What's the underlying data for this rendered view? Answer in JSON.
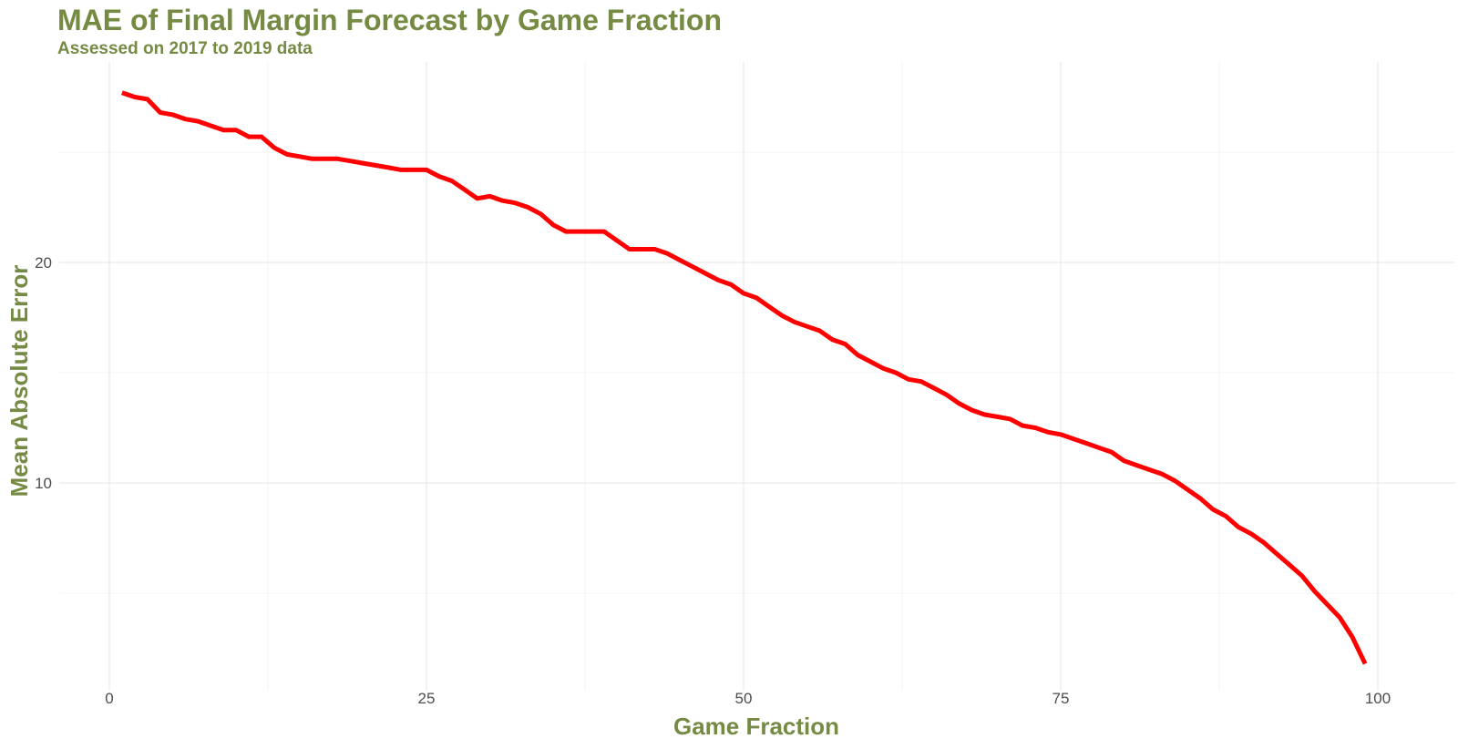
{
  "colors": {
    "title": "#758a43",
    "line": "#ff0000",
    "grid": "#e6e6e6",
    "tick_text": "#4d4d4d",
    "background": "#ffffff"
  },
  "chart_data": {
    "type": "line",
    "title": "MAE of Final Margin Forecast by Game Fraction",
    "subtitle": "Assessed on 2017 to 2019 data",
    "xlabel": "Game Fraction",
    "ylabel": "Mean Absolute Error",
    "xlim": [
      0,
      100
    ],
    "ylim": [
      1,
      28.8
    ],
    "x_ticks": [
      0,
      25,
      50,
      75,
      100
    ],
    "x_tick_labels": [
      "0",
      "25",
      "50",
      "75",
      "100"
    ],
    "y_ticks": [
      10,
      20
    ],
    "y_tick_labels": [
      "10",
      "20"
    ],
    "grid": true,
    "legend": "none",
    "series": [
      {
        "x": [
          1,
          2,
          3,
          4,
          5,
          6,
          7,
          8,
          9,
          10,
          11,
          12,
          13,
          14,
          15,
          16,
          17,
          18,
          19,
          20,
          21,
          22,
          23,
          24,
          25,
          26,
          27,
          28,
          29,
          30,
          31,
          32,
          33,
          34,
          35,
          36,
          37,
          38,
          39,
          40,
          41,
          42,
          43,
          44,
          45,
          46,
          47,
          48,
          49,
          50,
          51,
          52,
          53,
          54,
          55,
          56,
          57,
          58,
          59,
          60,
          61,
          62,
          63,
          64,
          65,
          66,
          67,
          68,
          69,
          70,
          71,
          72,
          73,
          74,
          75,
          76,
          77,
          78,
          79,
          80,
          81,
          82,
          83,
          84,
          85,
          86,
          87,
          88,
          89,
          90,
          91,
          92,
          93,
          94,
          95,
          96,
          97,
          98,
          99
        ],
        "values": [
          27.7,
          27.5,
          27.4,
          26.8,
          26.7,
          26.5,
          26.4,
          26.2,
          26.0,
          26.0,
          25.7,
          25.7,
          25.2,
          24.9,
          24.8,
          24.7,
          24.7,
          24.7,
          24.6,
          24.5,
          24.4,
          24.3,
          24.2,
          24.2,
          24.2,
          23.9,
          23.7,
          23.3,
          22.9,
          23.0,
          22.8,
          22.7,
          22.5,
          22.2,
          21.7,
          21.4,
          21.4,
          21.4,
          21.4,
          21.0,
          20.6,
          20.6,
          20.6,
          20.4,
          20.1,
          19.8,
          19.5,
          19.2,
          19.0,
          18.6,
          18.4,
          18.0,
          17.6,
          17.3,
          17.1,
          16.9,
          16.5,
          16.3,
          15.8,
          15.5,
          15.2,
          15.0,
          14.7,
          14.6,
          14.3,
          14.0,
          13.6,
          13.3,
          13.1,
          13.0,
          12.9,
          12.6,
          12.5,
          12.3,
          12.2,
          12.0,
          11.8,
          11.6,
          11.4,
          11.0,
          10.8,
          10.6,
          10.4,
          10.1,
          9.7,
          9.3,
          8.8,
          8.5,
          8.0,
          7.7,
          7.3,
          6.8,
          6.3,
          5.8,
          5.1,
          4.5,
          3.9,
          3.0,
          1.8
        ]
      }
    ]
  }
}
